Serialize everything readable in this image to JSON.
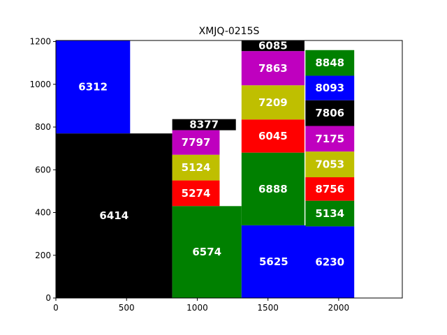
{
  "chart_data": {
    "type": "bar",
    "subtype": "rectangles",
    "title": "XMJQ-0215S",
    "xlabel": "",
    "ylabel": "",
    "xlim": [
      0,
      2450
    ],
    "ylim": [
      0,
      1205
    ],
    "x_ticks": [
      0,
      500,
      1000,
      1500,
      2000
    ],
    "y_ticks": [
      0,
      200,
      400,
      600,
      800,
      1000,
      1200
    ],
    "grid": false,
    "legend": "none",
    "colors": {
      "blue": "#0000ff",
      "black": "#000000",
      "green": "#008000",
      "red": "#ff0000",
      "yellow": "#bfbf00",
      "magenta": "#bf00bf"
    },
    "rectangles": [
      {
        "label": "6312",
        "x": 0,
        "y": 770,
        "w": 525,
        "h": 435,
        "color": "blue"
      },
      {
        "label": "6414",
        "x": 0,
        "y": 0,
        "w": 823,
        "h": 770,
        "color": "black"
      },
      {
        "label": "8377",
        "x": 823,
        "y": 785,
        "w": 450,
        "h": 52,
        "color": "black"
      },
      {
        "label": "7797",
        "x": 823,
        "y": 670,
        "w": 335,
        "h": 115,
        "color": "magenta"
      },
      {
        "label": "5124",
        "x": 823,
        "y": 550,
        "w": 335,
        "h": 120,
        "color": "yellow"
      },
      {
        "label": "5274",
        "x": 823,
        "y": 430,
        "w": 335,
        "h": 120,
        "color": "red"
      },
      {
        "label": "6574",
        "x": 823,
        "y": 0,
        "w": 490,
        "h": 430,
        "color": "green"
      },
      {
        "label": "6085",
        "x": 1313,
        "y": 1155,
        "w": 445,
        "h": 50,
        "color": "black"
      },
      {
        "label": "7863",
        "x": 1313,
        "y": 995,
        "w": 445,
        "h": 160,
        "color": "magenta"
      },
      {
        "label": "7209",
        "x": 1313,
        "y": 835,
        "w": 445,
        "h": 160,
        "color": "yellow"
      },
      {
        "label": "6045",
        "x": 1313,
        "y": 680,
        "w": 445,
        "h": 155,
        "color": "red"
      },
      {
        "label": "6888",
        "x": 1313,
        "y": 340,
        "w": 445,
        "h": 340,
        "color": "green"
      },
      {
        "label": "5625",
        "x": 1313,
        "y": 0,
        "w": 455,
        "h": 340,
        "color": "blue"
      },
      {
        "label": "8848",
        "x": 1765,
        "y": 1040,
        "w": 345,
        "h": 120,
        "color": "green"
      },
      {
        "label": "8093",
        "x": 1765,
        "y": 925,
        "w": 345,
        "h": 115,
        "color": "blue"
      },
      {
        "label": "7806",
        "x": 1765,
        "y": 805,
        "w": 345,
        "h": 120,
        "color": "black"
      },
      {
        "label": "7175",
        "x": 1765,
        "y": 685,
        "w": 345,
        "h": 120,
        "color": "magenta"
      },
      {
        "label": "7053",
        "x": 1765,
        "y": 565,
        "w": 345,
        "h": 120,
        "color": "yellow"
      },
      {
        "label": "8756",
        "x": 1765,
        "y": 455,
        "w": 345,
        "h": 110,
        "color": "red"
      },
      {
        "label": "5134",
        "x": 1765,
        "y": 335,
        "w": 345,
        "h": 120,
        "color": "green"
      },
      {
        "label": "6230",
        "x": 1765,
        "y": 0,
        "w": 345,
        "h": 335,
        "color": "blue"
      }
    ]
  }
}
